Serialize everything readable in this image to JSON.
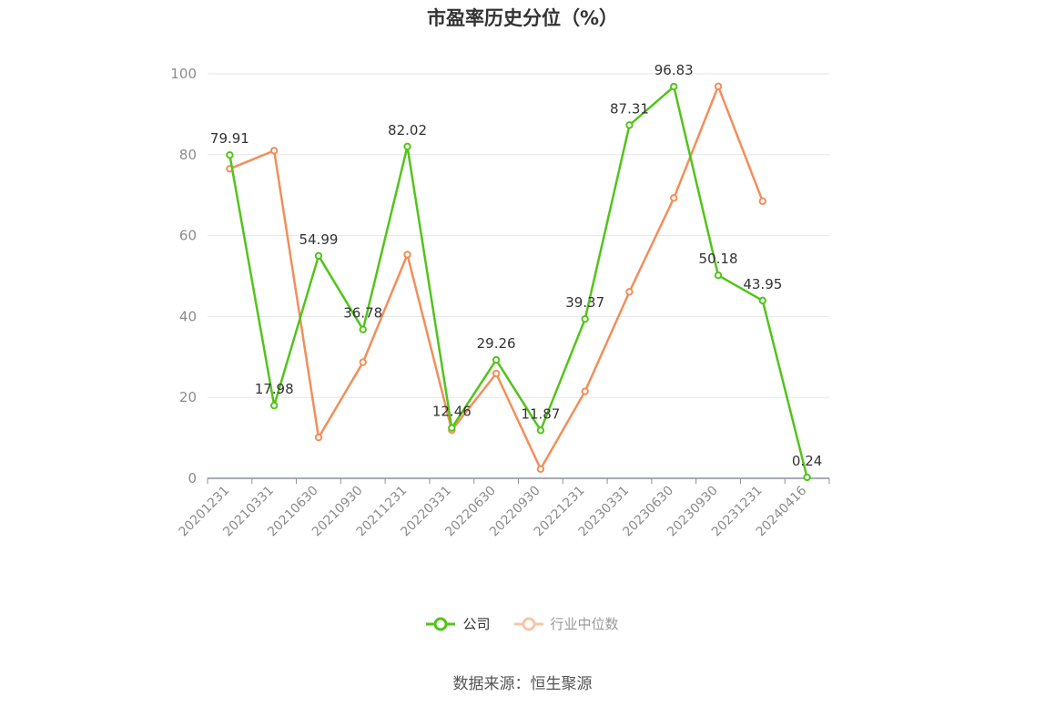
{
  "chart_data": {
    "type": "line",
    "title": "市盈率历史分位（%）",
    "x": [
      "20201231",
      "20210331",
      "20210630",
      "20210930",
      "20211231",
      "20220331",
      "20220630",
      "20220930",
      "20221231",
      "20230331",
      "20230630",
      "20230930",
      "20231231",
      "20240416"
    ],
    "ylim": [
      0,
      100
    ],
    "yticks": [
      0,
      20,
      40,
      60,
      80,
      100
    ],
    "grid": true,
    "legend_position": "bottom",
    "series": [
      {
        "name": "公司",
        "color": "#52c41a",
        "values": [
          79.91,
          17.98,
          54.99,
          36.78,
          82.02,
          12.46,
          29.26,
          11.87,
          39.37,
          87.31,
          96.83,
          50.18,
          43.95,
          0.24
        ],
        "labels": [
          "79.91",
          "17.98",
          "54.99",
          "36.78",
          "82.02",
          "12.46",
          "29.26",
          "11.87",
          "39.37",
          "87.31",
          "96.83",
          "50.18",
          "43.95",
          "0.24"
        ]
      },
      {
        "name": "行业中位数",
        "color": "#f28e5a",
        "values": [
          76.5,
          81.0,
          10.1,
          28.7,
          55.3,
          11.9,
          25.9,
          2.3,
          21.5,
          46.1,
          69.3,
          96.9,
          68.5,
          null
        ]
      }
    ]
  },
  "legend": {
    "company": "公司",
    "industry": "行业中位数"
  },
  "source": "数据来源：恒生聚源",
  "colors": {
    "grid": "#e3e6ee",
    "axis": "#8a8f9c",
    "tick_text": "#8c8c8c",
    "label_text": "#333333"
  }
}
